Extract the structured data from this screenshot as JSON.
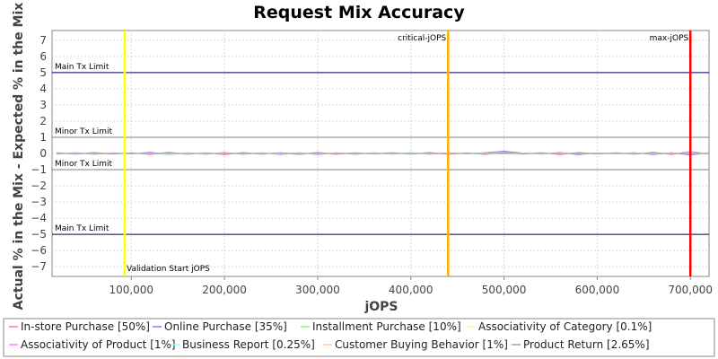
{
  "chart_data": {
    "type": "line",
    "title": "Request Mix Accuracy",
    "xlabel": "jOPS",
    "ylabel": "Actual % in the Mix - Expected % in the Mix",
    "xlim": [
      15000,
      720000
    ],
    "ylim": [
      -7.6,
      7.6
    ],
    "xticks": [
      100000,
      200000,
      300000,
      400000,
      500000,
      600000,
      700000
    ],
    "xtick_labels": [
      "100,000",
      "200,000",
      "300,000",
      "400,000",
      "500,000",
      "600,000",
      "700,000"
    ],
    "yticks": [
      -7,
      -6,
      -5,
      -4,
      -3,
      -2,
      -1,
      0,
      1,
      2,
      3,
      4,
      5,
      6,
      7
    ],
    "grid": true,
    "legend_position": "bottom",
    "limit_lines": [
      {
        "label": "Main Tx Limit",
        "y": 5,
        "color": "#000066"
      },
      {
        "label": "Minor Tx Limit",
        "y": 1,
        "color": "#808080"
      },
      {
        "label": "Minor Tx Limit",
        "y": -1,
        "color": "#808080"
      },
      {
        "label": "Main Tx Limit",
        "y": -5,
        "color": "#000066"
      }
    ],
    "markers": [
      {
        "label": "Validation Start jOPS",
        "x": 93000,
        "color": "#ffff00",
        "label_pos": "bottom"
      },
      {
        "label": "critical-jOPS",
        "x": 440000,
        "color": "#ffb000",
        "label_pos": "top"
      },
      {
        "label": "max-jOPS",
        "x": 700000,
        "color": "#ff0000",
        "label_pos": "top"
      }
    ],
    "x": [
      20000,
      40000,
      60000,
      80000,
      100000,
      120000,
      140000,
      160000,
      180000,
      200000,
      220000,
      240000,
      260000,
      280000,
      300000,
      320000,
      340000,
      360000,
      380000,
      400000,
      420000,
      440000,
      460000,
      480000,
      500000,
      520000,
      540000,
      560000,
      580000,
      600000,
      620000,
      640000,
      660000,
      680000,
      700000,
      720000
    ],
    "series": [
      {
        "name": "In-store Purchase [50%]",
        "color": "#ff8080",
        "values": [
          0.05,
          -0.04,
          0.06,
          -0.03,
          0.04,
          -0.06,
          0.08,
          -0.05,
          0.04,
          -0.07,
          0.06,
          -0.04,
          0.05,
          -0.06,
          0.07,
          -0.05,
          0.04,
          -0.03,
          0.05,
          -0.04,
          0.06,
          -0.05,
          0.03,
          -0.06,
          0.07,
          -0.04,
          0.05,
          -0.07,
          0.06,
          -0.03,
          0.04,
          -0.05,
          0.08,
          -0.06,
          0.12,
          -0.04
        ]
      },
      {
        "name": "Online Purchase [35%]",
        "color": "#8080ff",
        "values": [
          -0.04,
          0.05,
          -0.05,
          0.04,
          -0.03,
          0.07,
          -0.06,
          0.04,
          -0.05,
          0.06,
          -0.05,
          0.04,
          -0.06,
          0.05,
          -0.06,
          0.04,
          -0.05,
          0.04,
          -0.04,
          0.05,
          -0.05,
          0.04,
          -0.03,
          0.05,
          0.14,
          0.03,
          -0.04,
          0.06,
          -0.08,
          0.04,
          -0.03,
          0.05,
          -0.07,
          0.05,
          -0.1,
          0.05
        ]
      },
      {
        "name": "Installment Purchase [10%]",
        "color": "#80ff80",
        "values": [
          0.02,
          -0.03,
          0.03,
          -0.02,
          0.03,
          -0.02,
          -0.05,
          0.03,
          -0.02,
          0.03,
          -0.03,
          0.02,
          -0.02,
          0.03,
          -0.03,
          0.02,
          -0.02,
          0.03,
          -0.02,
          0.02,
          -0.03,
          0.02,
          -0.02,
          0.03,
          -0.02,
          0.02,
          -0.03,
          0.02,
          -0.02,
          0.03,
          -0.02,
          0.02,
          -0.03,
          0.02,
          -0.02,
          0.03
        ]
      },
      {
        "name": "Associativity of Category [0.1%]",
        "color": "#ffff80",
        "values": [
          0.01,
          0.0,
          -0.01,
          0.01,
          0.0,
          -0.01,
          0.01,
          0.0,
          -0.01,
          0.01,
          0.0,
          -0.01,
          0.01,
          0.0,
          -0.01,
          0.01,
          0.0,
          -0.01,
          0.01,
          0.0,
          -0.01,
          0.01,
          0.0,
          -0.01,
          0.01,
          0.0,
          -0.01,
          0.01,
          0.0,
          -0.01,
          0.01,
          0.0,
          -0.01,
          0.01,
          0.0,
          -0.01
        ]
      },
      {
        "name": "Associativity of Product [1%]",
        "color": "#ff80ff",
        "values": [
          0.0,
          0.02,
          -0.02,
          0.01,
          -0.01,
          0.02,
          -0.02,
          0.01,
          -0.01,
          0.02,
          -0.01,
          0.01,
          -0.02,
          0.01,
          -0.01,
          0.02,
          -0.01,
          0.01,
          -0.02,
          0.01,
          -0.01,
          0.02,
          -0.01,
          0.01,
          -0.02,
          0.01,
          -0.01,
          0.02,
          -0.01,
          0.01,
          -0.02,
          0.01,
          -0.01,
          0.02,
          -0.01,
          0.01
        ]
      },
      {
        "name": "Business Report [0.25%]",
        "color": "#80ffff",
        "values": [
          -0.01,
          0.01,
          0.0,
          -0.01,
          0.01,
          0.0,
          -0.01,
          0.01,
          0.0,
          -0.01,
          0.01,
          0.0,
          -0.01,
          0.01,
          0.0,
          -0.01,
          0.01,
          0.0,
          -0.01,
          0.01,
          0.0,
          -0.01,
          0.01,
          0.0,
          -0.01,
          0.01,
          0.0,
          -0.01,
          0.01,
          0.0,
          -0.01,
          0.01,
          0.0,
          -0.01,
          0.01,
          0.0
        ]
      },
      {
        "name": "Customer Buying Behavior [1%]",
        "color": "#ffc8a0",
        "values": [
          0.02,
          -0.01,
          0.01,
          -0.02,
          0.02,
          -0.01,
          0.01,
          -0.02,
          0.02,
          -0.01,
          0.01,
          -0.02,
          0.02,
          -0.01,
          0.01,
          -0.02,
          0.02,
          -0.01,
          0.01,
          -0.02,
          0.02,
          -0.01,
          0.01,
          -0.02,
          0.02,
          -0.01,
          0.01,
          -0.02,
          0.02,
          -0.01,
          0.01,
          -0.02,
          0.02,
          -0.01,
          0.01,
          -0.02
        ]
      },
      {
        "name": "Product Return [2.65%]",
        "color": "#a0a0a0",
        "values": [
          0.03,
          -0.02,
          0.02,
          -0.03,
          0.02,
          -0.02,
          0.03,
          -0.02,
          0.02,
          -0.03,
          0.02,
          -0.02,
          0.03,
          -0.02,
          0.02,
          -0.03,
          0.02,
          -0.02,
          0.03,
          -0.02,
          0.02,
          -0.03,
          0.02,
          -0.02,
          0.03,
          -0.02,
          0.02,
          -0.03,
          0.02,
          -0.02,
          0.03,
          -0.02,
          0.02,
          -0.03,
          0.02,
          -0.02
        ]
      }
    ]
  }
}
